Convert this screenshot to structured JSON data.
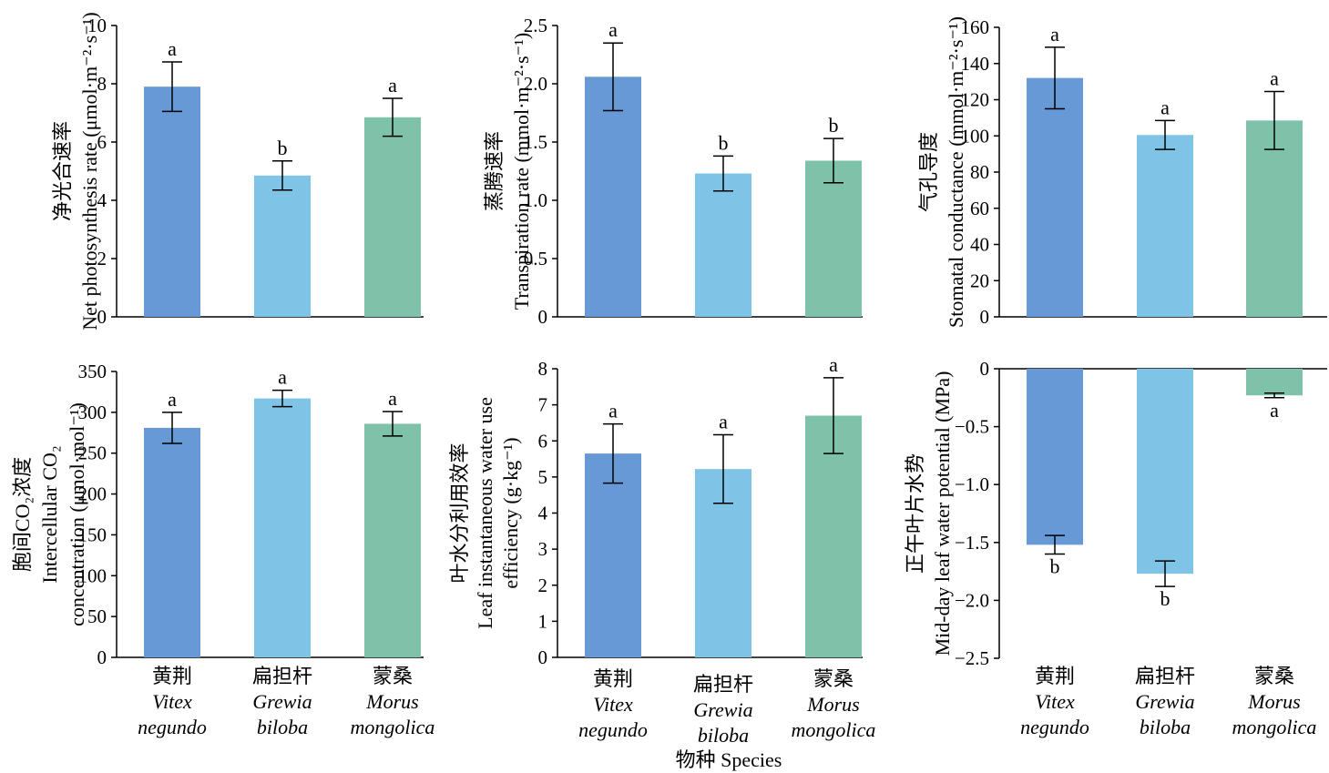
{
  "species": {
    "cn": [
      "黄荆",
      "扁担杆",
      "蒙桑"
    ],
    "latin_1": [
      "Vitex",
      "Grewia",
      "Morus"
    ],
    "latin_2": [
      "negundo",
      "biloba",
      "mongolica"
    ]
  },
  "x_axis_title": "物种 Species",
  "colors": {
    "s0": "#6699d6",
    "s1": "#7fc4e6",
    "s2": "#7fc2aa"
  },
  "chart_data": [
    {
      "type": "bar",
      "ylabel_cn": "净光合速率",
      "ylabel_en": "Net photosynthesis rate (μmol·m⁻²·s⁻¹)",
      "ylim": [
        0,
        10
      ],
      "yticks": [
        "0",
        "2",
        "4",
        "6",
        "8",
        "10"
      ],
      "values": [
        7.9,
        4.85,
        6.85
      ],
      "errors": [
        0.85,
        0.5,
        0.65
      ],
      "letters": [
        "a",
        "b",
        "a"
      ]
    },
    {
      "type": "bar",
      "ylabel_cn": "蒸腾速率",
      "ylabel_en": "Transpiration rate (mmol·m⁻²·s⁻¹)",
      "ylim": [
        0,
        2.5
      ],
      "yticks": [
        "0",
        "0.5",
        "1.0",
        "1.5",
        "2.0",
        "2.5"
      ],
      "values": [
        2.06,
        1.23,
        1.34
      ],
      "errors": [
        0.29,
        0.15,
        0.19
      ],
      "letters": [
        "a",
        "b",
        "b"
      ]
    },
    {
      "type": "bar",
      "ylabel_cn": "气孔导度",
      "ylabel_en": "Stomatal conductance (mmol·m⁻²·s⁻¹)",
      "ylim": [
        0,
        160
      ],
      "yticks": [
        "0",
        "20",
        "40",
        "60",
        "80",
        "100",
        "120",
        "140",
        "160"
      ],
      "values": [
        132,
        100.5,
        108.5
      ],
      "errors": [
        17,
        8,
        16
      ],
      "letters": [
        "a",
        "a",
        "a"
      ]
    },
    {
      "type": "bar",
      "ylabel_cn": "胞间CO₂浓度",
      "ylabel_en_1": "Intercellular CO₂",
      "ylabel_en_2": "concentration (μmol·mol⁻¹)",
      "ylim": [
        0,
        350
      ],
      "yticks": [
        "0",
        "50",
        "100",
        "150",
        "200",
        "250",
        "300",
        "350"
      ],
      "values": [
        281,
        317,
        286
      ],
      "errors": [
        19,
        10,
        15
      ],
      "letters": [
        "a",
        "a",
        "a"
      ]
    },
    {
      "type": "bar",
      "ylabel_cn": "叶水分利用效率",
      "ylabel_en_1": "Leaf instantaneous water use",
      "ylabel_en_2": "efficiency (g·kg⁻¹)",
      "ylim": [
        0,
        8
      ],
      "yticks": [
        "0",
        "1",
        "2",
        "3",
        "4",
        "5",
        "6",
        "7",
        "8"
      ],
      "values": [
        5.65,
        5.22,
        6.7
      ],
      "errors": [
        0.82,
        0.95,
        1.05
      ],
      "letters": [
        "a",
        "a",
        "a"
      ]
    },
    {
      "type": "bar",
      "ylabel_cn": "正午叶片水势",
      "ylabel_en": "Mid-day leaf water potential (MPa)",
      "ylim": [
        -2.5,
        0
      ],
      "yticks": [
        "0",
        "-0.5",
        "-1.0",
        "-1.5",
        "-2.0",
        "-2.5"
      ],
      "values": [
        -1.52,
        -1.77,
        -0.23
      ],
      "errors": [
        0.08,
        0.11,
        0.02
      ],
      "letters": [
        "b",
        "b",
        "a"
      ]
    }
  ]
}
